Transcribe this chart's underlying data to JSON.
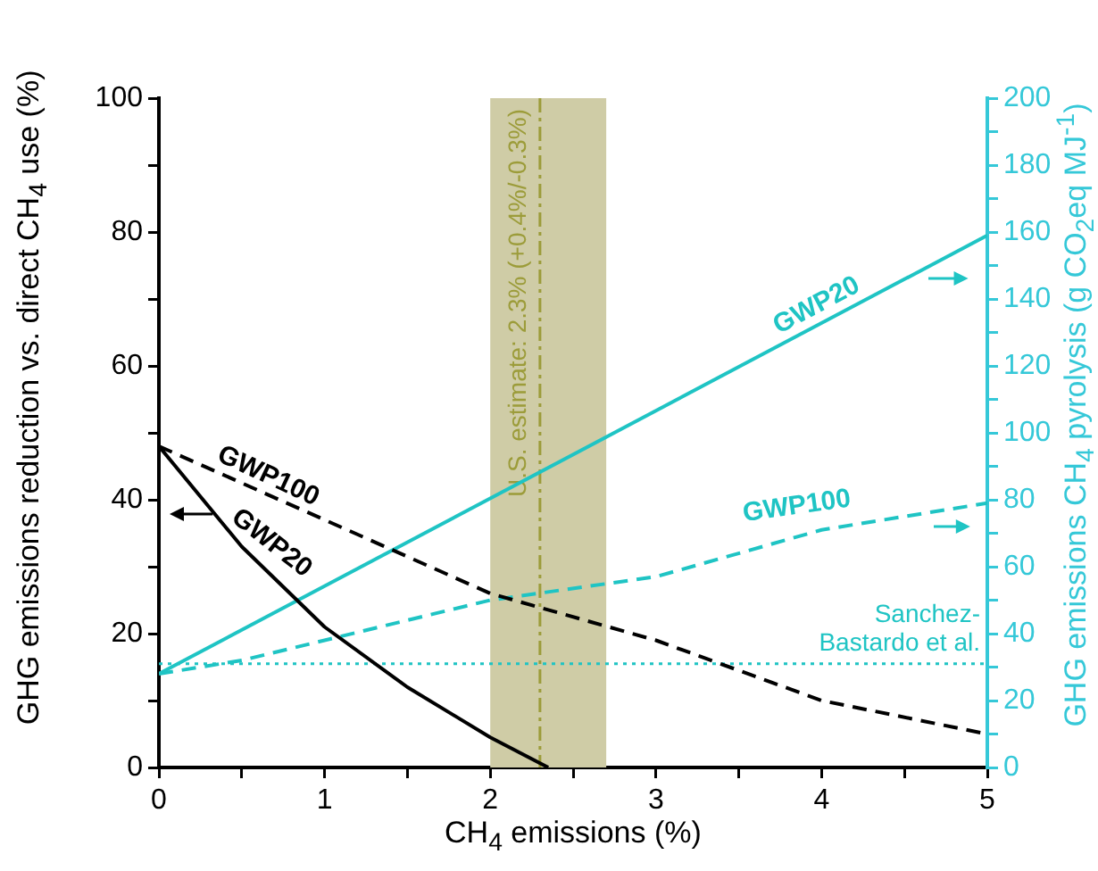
{
  "chart_data": {
    "type": "line",
    "xlabel": "CH$_{4}$ emissions (%)",
    "ylabel": "GHG emissions reduction vs. direct CH$_{4}$ use (%)",
    "y2label": "GHG emissions CH$_{4}$ pyrolysis (g CO$_{2}$eq MJ$^{-1}$)",
    "xlim": [
      0,
      5
    ],
    "xticks": [
      0,
      {
        "value": 0.5,
        "label": null
      },
      1,
      {
        "value": 1.5,
        "label": null
      },
      2,
      {
        "value": 2.5,
        "label": null
      },
      3,
      {
        "value": 3.5,
        "label": null
      },
      4,
      {
        "value": 4.5,
        "label": null
      },
      5
    ],
    "ylim": [
      0,
      100
    ],
    "yticks": [
      0,
      {
        "value": 10,
        "label": null
      },
      20,
      {
        "value": 30,
        "label": null
      },
      40,
      {
        "value": 50,
        "label": null
      },
      60,
      {
        "value": 70,
        "label": null
      },
      80,
      {
        "value": 90,
        "label": null
      },
      100
    ],
    "y2lim": [
      0,
      200
    ],
    "y2ticks": [
      0,
      {
        "value": 10,
        "label": null
      },
      20,
      {
        "value": 30,
        "label": null
      },
      40,
      {
        "value": 50,
        "label": null
      },
      60,
      {
        "value": 70,
        "label": null
      },
      80,
      {
        "value": 90,
        "label": null
      },
      100,
      {
        "value": 110,
        "label": null
      },
      120,
      {
        "value": 130,
        "label": null
      },
      140,
      {
        "value": 150,
        "label": null
      },
      160,
      {
        "value": 170,
        "label": null
      },
      180,
      {
        "value": 190,
        "label": null
      },
      200
    ],
    "marker": "none",
    "legend": false,
    "grid": false,
    "series": [
      {
        "name": "GWP100",
        "color": "#000000",
        "line_style": "dashed",
        "x": [
          0,
          1,
          2,
          3,
          4,
          5
        ],
        "values": [
          48,
          37,
          26,
          19,
          10,
          5
        ]
      },
      {
        "name": "GWP20",
        "color": "#000000",
        "line_style": "solid",
        "x": [
          0,
          0.5,
          1,
          1.5,
          2,
          2.35
        ],
        "values": [
          48,
          33,
          21,
          12,
          4.5,
          0
        ]
      },
      {
        "name": "GWP20",
        "color": "#1fc4c4",
        "line_style": "solid",
        "axis": "y2",
        "x": [
          0,
          5
        ],
        "values": [
          28,
          159
        ]
      },
      {
        "name": "GWP100",
        "color": "#1fc4c4",
        "line_style": "dashed",
        "axis": "y2",
        "x": [
          0,
          0.5,
          1,
          2,
          3,
          4,
          5
        ],
        "values": [
          28,
          32,
          38,
          50,
          57,
          71,
          79
        ]
      }
    ],
    "ref_lines": [
      {
        "axis": "x",
        "value": 2.3,
        "label": "U.S. estimate: 2.3% (+0.4%/-0.3%)",
        "color": "#9c9c3a",
        "line_style": "dashdot"
      },
      {
        "axis": "y2",
        "value": 31,
        "label": "Sanchez-Bastardo et al.",
        "color": "#1fc4c4",
        "line_style": "dotted"
      }
    ],
    "bands": [
      {
        "axis": "x",
        "from": 2.0,
        "to": 2.7,
        "color": "#cfcca6"
      }
    ]
  }
}
